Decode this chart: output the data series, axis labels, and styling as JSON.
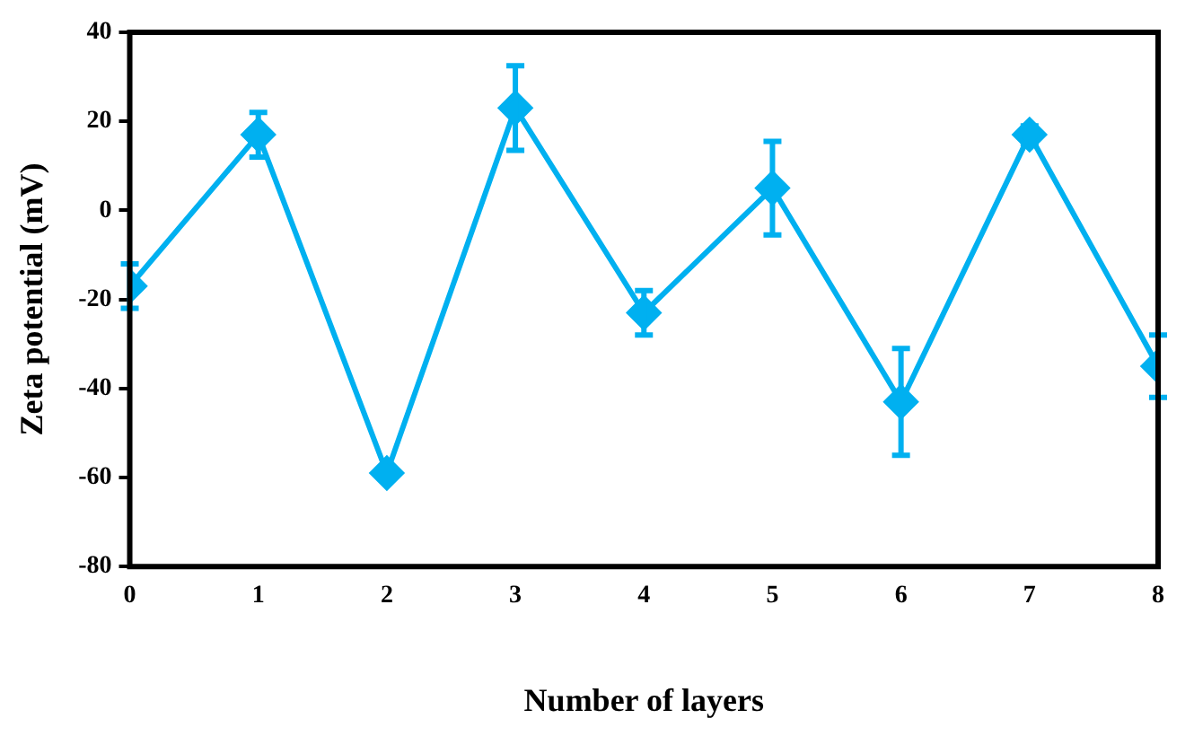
{
  "chart_data": {
    "type": "line",
    "xlabel": "Number of layers",
    "ylabel": "Zeta potential (mV)",
    "x": [
      0,
      1,
      2,
      3,
      4,
      5,
      6,
      7,
      8
    ],
    "series": [
      {
        "color": "#00b0f0",
        "values": [
          -17,
          17,
          -59,
          23,
          -23,
          5,
          -43,
          17,
          -35
        ],
        "errors": [
          5,
          5,
          null,
          9.5,
          5,
          10.5,
          12,
          2,
          7
        ]
      }
    ],
    "xlim": [
      0,
      8
    ],
    "xticks": [
      0,
      1,
      2,
      3,
      4,
      5,
      6,
      7,
      8
    ],
    "ylim": [
      -80,
      40
    ],
    "yticks": [
      -80,
      -60,
      -40,
      -20,
      0,
      20,
      40
    ],
    "grid": false,
    "legend": false,
    "marker": "diamond",
    "line_style": "solid"
  }
}
